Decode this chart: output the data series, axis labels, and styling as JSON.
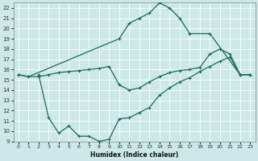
{
  "xlabel": "Humidex (Indice chaleur)",
  "bg_color": "#cce8e8",
  "grid_color": "#ffffff",
  "line_color": "#1a6b5a",
  "xlim": [
    -0.5,
    23.5
  ],
  "ylim": [
    9,
    22.5
  ],
  "xticks": [
    0,
    1,
    2,
    3,
    4,
    5,
    6,
    7,
    8,
    9,
    10,
    11,
    12,
    13,
    14,
    15,
    16,
    17,
    18,
    19,
    20,
    21,
    22,
    23
  ],
  "yticks": [
    9,
    10,
    11,
    12,
    13,
    14,
    15,
    16,
    17,
    18,
    19,
    20,
    21,
    22
  ],
  "line1_x": [
    0,
    1,
    10,
    11,
    12,
    13,
    14,
    15,
    16,
    17,
    19,
    22,
    23
  ],
  "line1_y": [
    15.5,
    15.3,
    19.0,
    20.5,
    21.0,
    21.5,
    22.5,
    22.0,
    21.0,
    19.5,
    19.5,
    15.5,
    15.5
  ],
  "line2_x": [
    0,
    1,
    2,
    3,
    4,
    5,
    6,
    7,
    8,
    9,
    10,
    11,
    12,
    13,
    14,
    15,
    16,
    17,
    18,
    19,
    20,
    21,
    22,
    23
  ],
  "line2_y": [
    15.5,
    15.3,
    15.3,
    15.5,
    15.7,
    15.8,
    15.9,
    16.0,
    16.1,
    16.3,
    14.5,
    14.0,
    14.2,
    14.8,
    15.3,
    15.7,
    15.9,
    16.0,
    16.2,
    17.5,
    18.0,
    17.5,
    15.5,
    15.5
  ],
  "line3_x": [
    2,
    3,
    4,
    5,
    6,
    7,
    8,
    9,
    10,
    11,
    12,
    13,
    14,
    15,
    16,
    17,
    18,
    19,
    20,
    21,
    22,
    23
  ],
  "line3_y": [
    15.5,
    11.3,
    9.8,
    10.5,
    9.5,
    9.5,
    9.0,
    9.2,
    11.2,
    11.3,
    11.8,
    12.3,
    13.5,
    14.2,
    14.8,
    15.2,
    15.8,
    16.3,
    16.8,
    17.2,
    15.5,
    15.5
  ]
}
